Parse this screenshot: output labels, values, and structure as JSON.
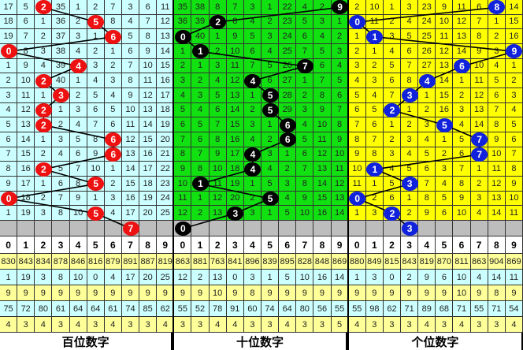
{
  "chart_data": {
    "type": "table",
    "panels": [
      {
        "title": "百位数字",
        "bg_color": "#ccffff",
        "ball_color": "#ee1111",
        "rows": [
          [
            17,
            5,
            2,
            35,
            1,
            2,
            7,
            3,
            6,
            11
          ],
          [
            18,
            6,
            1,
            36,
            2,
            5,
            8,
            4,
            7,
            12
          ],
          [
            19,
            7,
            2,
            37,
            3,
            1,
            6,
            5,
            8,
            13
          ],
          [
            0,
            8,
            3,
            38,
            4,
            2,
            1,
            6,
            9,
            14
          ],
          [
            1,
            9,
            4,
            39,
            4,
            3,
            2,
            7,
            10,
            15
          ],
          [
            2,
            10,
            2,
            40,
            1,
            4,
            3,
            8,
            11,
            16
          ],
          [
            3,
            11,
            1,
            3,
            2,
            5,
            4,
            9,
            12,
            17
          ],
          [
            4,
            12,
            2,
            1,
            3,
            6,
            5,
            10,
            13,
            18
          ],
          [
            5,
            13,
            2,
            2,
            4,
            7,
            6,
            11,
            14,
            19
          ],
          [
            6,
            14,
            1,
            3,
            5,
            8,
            6,
            12,
            15,
            20
          ],
          [
            7,
            15,
            2,
            4,
            6,
            9,
            6,
            13,
            16,
            21
          ],
          [
            8,
            16,
            2,
            5,
            7,
            10,
            1,
            14,
            17,
            22
          ],
          [
            9,
            17,
            1,
            6,
            8,
            5,
            2,
            15,
            18,
            23
          ],
          [
            0,
            18,
            2,
            7,
            9,
            1,
            3,
            16,
            19,
            24
          ],
          [
            1,
            19,
            3,
            8,
            10,
            5,
            4,
            17,
            20,
            25
          ]
        ],
        "balls": [
          2,
          5,
          6,
          0,
          4,
          2,
          3,
          2,
          2,
          6,
          6,
          2,
          5,
          0,
          5
        ],
        "current": 7,
        "header": [
          "0",
          "1",
          "2",
          "3",
          "4",
          "5",
          "6",
          "7",
          "8",
          "9"
        ],
        "stats": [
          [
            "830",
            "843",
            "834",
            "878",
            "846",
            "816",
            "879",
            "891",
            "887",
            "819"
          ],
          [
            "1",
            "19",
            "3",
            "8",
            "10",
            "0",
            "4",
            "17",
            "20",
            "25"
          ],
          [
            "9",
            "9",
            "9",
            "9",
            "9",
            "9",
            "9",
            "9",
            "9",
            "9"
          ],
          [
            "75",
            "72",
            "80",
            "61",
            "64",
            "64",
            "61",
            "74",
            "85",
            "62"
          ],
          [
            "4",
            "3",
            "4",
            "3",
            "4",
            "3",
            "4",
            "3",
            "3",
            "4"
          ]
        ]
      },
      {
        "title": "十位数字",
        "bg_color": "#11e011",
        "ball_color": "#000000",
        "rows": [
          [
            35,
            38,
            8,
            7,
            3,
            1,
            22,
            4,
            2,
            9
          ],
          [
            36,
            39,
            2,
            8,
            4,
            2,
            23,
            5,
            3,
            1
          ],
          [
            0,
            40,
            1,
            9,
            5,
            3,
            24,
            6,
            4,
            2
          ],
          [
            1,
            1,
            2,
            10,
            6,
            4,
            25,
            7,
            5,
            3
          ],
          [
            2,
            1,
            3,
            11,
            7,
            5,
            26,
            7,
            6,
            4
          ],
          [
            3,
            2,
            4,
            12,
            4,
            6,
            27,
            1,
            7,
            5
          ],
          [
            4,
            3,
            5,
            13,
            1,
            5,
            28,
            2,
            8,
            6
          ],
          [
            5,
            4,
            6,
            14,
            2,
            5,
            29,
            3,
            9,
            7
          ],
          [
            6,
            5,
            7,
            15,
            3,
            1,
            6,
            4,
            10,
            8
          ],
          [
            7,
            6,
            8,
            16,
            4,
            2,
            6,
            5,
            11,
            9
          ],
          [
            8,
            7,
            9,
            17,
            4,
            3,
            1,
            6,
            12,
            10
          ],
          [
            9,
            8,
            10,
            18,
            4,
            4,
            2,
            7,
            13,
            11
          ],
          [
            10,
            1,
            11,
            19,
            1,
            5,
            3,
            8,
            14,
            12
          ],
          [
            11,
            1,
            12,
            20,
            2,
            5,
            4,
            9,
            15,
            13
          ],
          [
            12,
            2,
            13,
            3,
            3,
            1,
            5,
            10,
            16,
            14
          ]
        ],
        "balls": [
          9,
          2,
          0,
          1,
          7,
          4,
          5,
          5,
          6,
          6,
          4,
          4,
          1,
          5,
          3
        ],
        "current": 0,
        "header": [
          "0",
          "1",
          "2",
          "3",
          "4",
          "5",
          "6",
          "7",
          "8",
          "9"
        ],
        "stats": [
          [
            "863",
            "881",
            "763",
            "841",
            "896",
            "839",
            "895",
            "828",
            "848",
            "869"
          ],
          [
            "12",
            "2",
            "13",
            "0",
            "3",
            "1",
            "5",
            "10",
            "16",
            "14"
          ],
          [
            "9",
            "9",
            "10",
            "9",
            "8",
            "9",
            "9",
            "9",
            "9",
            "9"
          ],
          [
            "55",
            "52",
            "78",
            "91",
            "60",
            "74",
            "64",
            "80",
            "56",
            "55"
          ],
          [
            "3",
            "3",
            "4",
            "4",
            "3",
            "3",
            "4",
            "3",
            "3",
            "5"
          ]
        ]
      },
      {
        "title": "个位数字",
        "bg_color": "#ffff00",
        "ball_color": "#1122dd",
        "rows": [
          [
            2,
            10,
            1,
            3,
            23,
            9,
            11,
            6,
            8,
            14
          ],
          [
            0,
            11,
            2,
            4,
            24,
            10,
            12,
            7,
            1,
            15
          ],
          [
            1,
            1,
            3,
            5,
            25,
            11,
            13,
            8,
            2,
            16
          ],
          [
            2,
            1,
            4,
            6,
            26,
            12,
            14,
            9,
            3,
            9
          ],
          [
            3,
            2,
            5,
            7,
            27,
            13,
            6,
            10,
            4,
            1
          ],
          [
            4,
            3,
            6,
            8,
            4,
            14,
            1,
            11,
            5,
            2
          ],
          [
            5,
            4,
            7,
            3,
            1,
            15,
            2,
            12,
            6,
            3
          ],
          [
            6,
            5,
            2,
            1,
            2,
            16,
            3,
            13,
            7,
            4
          ],
          [
            7,
            6,
            1,
            2,
            3,
            5,
            4,
            14,
            8,
            5
          ],
          [
            8,
            7,
            2,
            3,
            4,
            1,
            5,
            7,
            9,
            6
          ],
          [
            9,
            8,
            3,
            4,
            5,
            2,
            6,
            7,
            10,
            7
          ],
          [
            10,
            1,
            4,
            5,
            6,
            3,
            7,
            1,
            11,
            8
          ],
          [
            11,
            1,
            5,
            3,
            7,
            4,
            8,
            2,
            12,
            9
          ],
          [
            0,
            2,
            6,
            1,
            8,
            5,
            9,
            3,
            13,
            10
          ],
          [
            1,
            3,
            2,
            2,
            9,
            6,
            10,
            4,
            14,
            11
          ]
        ],
        "balls": [
          8,
          0,
          1,
          9,
          6,
          4,
          3,
          2,
          5,
          7,
          7,
          1,
          3,
          0,
          2
        ],
        "current": 3,
        "header": [
          "0",
          "1",
          "2",
          "3",
          "4",
          "5",
          "6",
          "7",
          "8",
          "9"
        ],
        "stats": [
          [
            "880",
            "849",
            "815",
            "843",
            "819",
            "870",
            "811",
            "863",
            "904",
            "869"
          ],
          [
            "1",
            "3",
            "0",
            "2",
            "9",
            "6",
            "10",
            "4",
            "14",
            "11"
          ],
          [
            "9",
            "9",
            "9",
            "9",
            "9",
            "9",
            "10",
            "9",
            "8",
            "9"
          ],
          [
            "55",
            "98",
            "62",
            "71",
            "89",
            "68",
            "71",
            "55",
            "71",
            "54"
          ],
          [
            "4",
            "3",
            "3",
            "3",
            "4",
            "3",
            "4",
            "3",
            "3",
            "4"
          ]
        ]
      }
    ],
    "stat_row_colors": [
      "#ffff99",
      "#ccffff",
      "#ffff99",
      "#ccffff",
      "#ffff99"
    ]
  }
}
